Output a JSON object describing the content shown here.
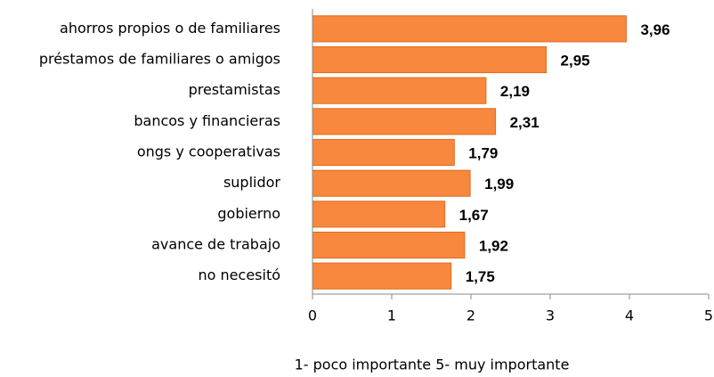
{
  "chart_data": {
    "type": "barh",
    "categories": [
      "ahorros propios o de familiares",
      "préstamos de familiares o amigos",
      "prestamistas",
      "bancos y financieras",
      "ongs y cooperativas",
      "suplidor",
      "gobierno",
      "avance de trabajo",
      "no necesitó"
    ],
    "values": [
      3.96,
      2.95,
      2.19,
      2.31,
      1.79,
      1.99,
      1.67,
      1.92,
      1.75
    ],
    "value_labels": [
      "3,96",
      "2,95",
      "2,19",
      "2,31",
      "1,79",
      "1,99",
      "1,67",
      "1,92",
      "1,75"
    ],
    "color": "#f7883d",
    "xlim": [
      0,
      5
    ],
    "xticks": [
      0,
      1,
      2,
      3,
      4,
      5
    ],
    "xlabel": "1- poco importante 5- muy importante"
  }
}
